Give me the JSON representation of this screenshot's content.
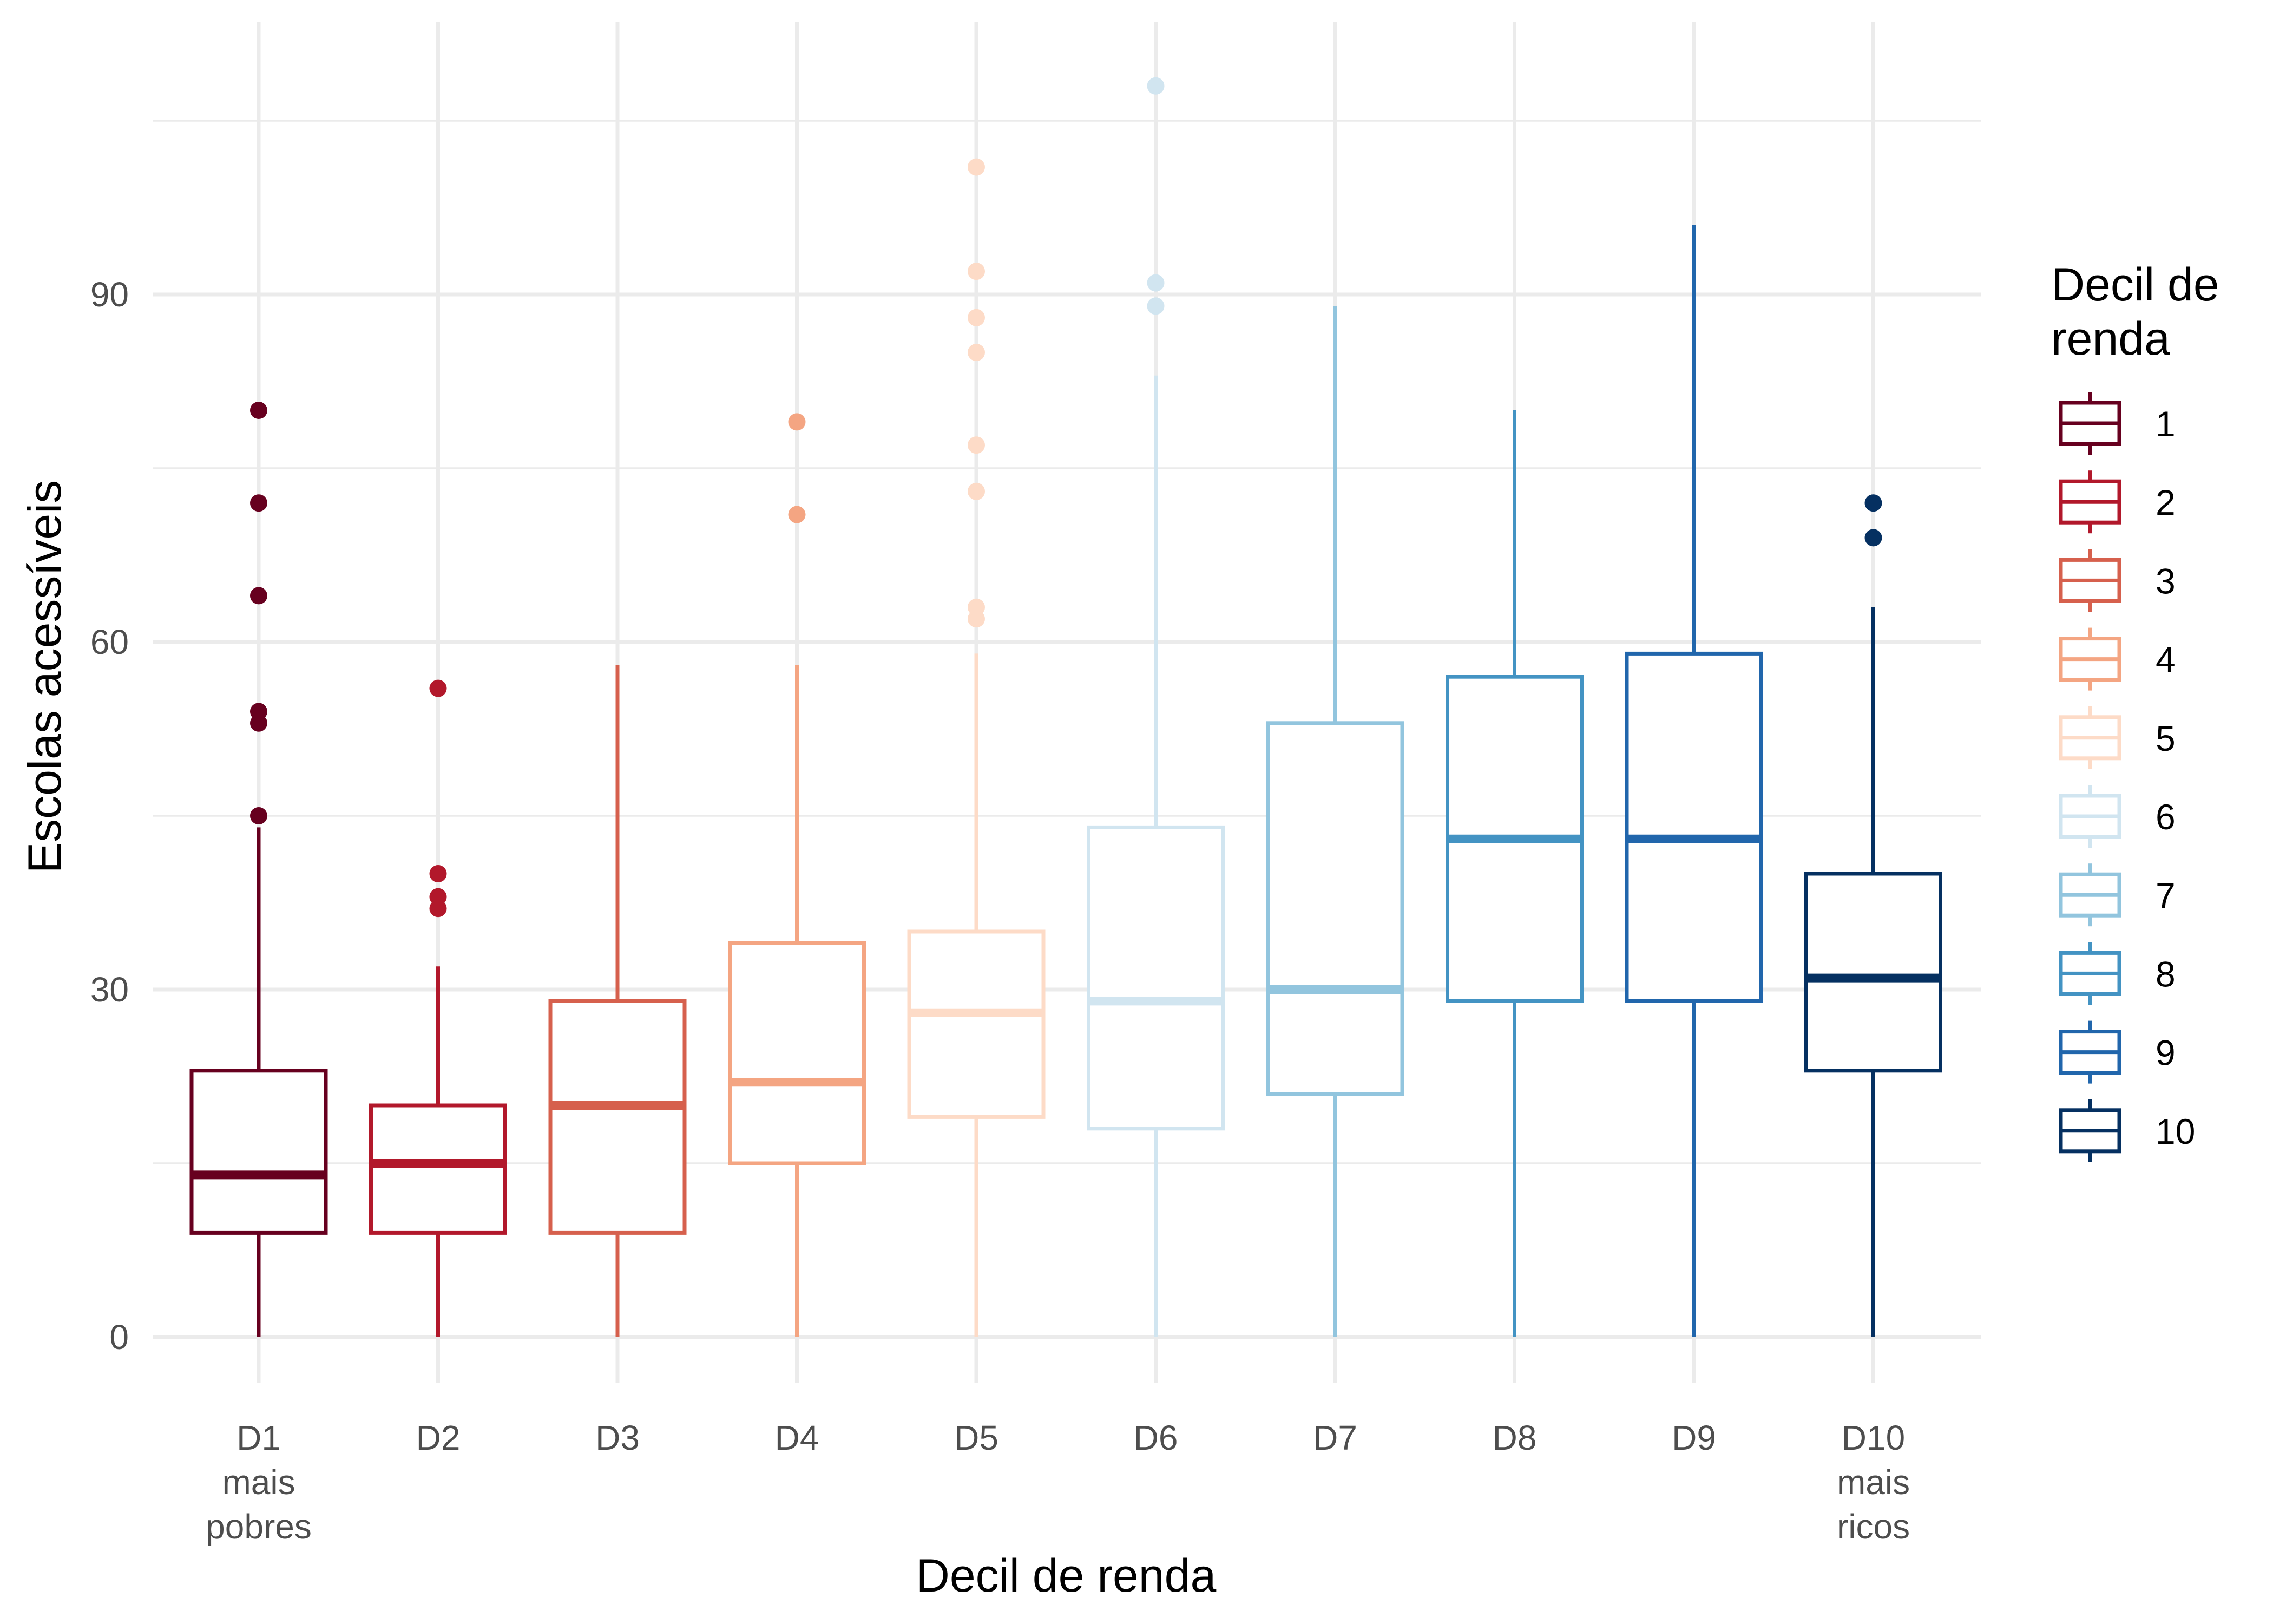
{
  "chart_data": {
    "type": "boxplot",
    "xlabel": "Decil de renda",
    "ylabel": "Escolas acessíveis",
    "ylim": [
      -5,
      110
    ],
    "yticks": [
      0,
      30,
      60,
      90
    ],
    "grid": true,
    "legend": {
      "title_lines": [
        "Decil de",
        "renda"
      ],
      "placement": "right"
    },
    "series": [
      {
        "category": [
          "D1",
          "mais",
          "pobres"
        ],
        "legend": "1",
        "color": "#67001F",
        "whisker_low": 0,
        "q1": 9,
        "median": 14,
        "q3": 23,
        "whisker_high": 44,
        "outliers": [
          45,
          53,
          54,
          64,
          72,
          80
        ]
      },
      {
        "category": [
          "D2"
        ],
        "legend": "2",
        "color": "#B2182B",
        "whisker_low": 0,
        "q1": 9,
        "median": 15,
        "q3": 20,
        "whisker_high": 32,
        "outliers": [
          37,
          38,
          40,
          56
        ]
      },
      {
        "category": [
          "D3"
        ],
        "legend": "3",
        "color": "#D6604D",
        "whisker_low": 0,
        "q1": 9,
        "median": 20,
        "q3": 29,
        "whisker_high": 58,
        "outliers": []
      },
      {
        "category": [
          "D4"
        ],
        "legend": "4",
        "color": "#F4A582",
        "whisker_low": 0,
        "q1": 15,
        "median": 22,
        "q3": 34,
        "whisker_high": 58,
        "outliers": [
          71,
          79
        ]
      },
      {
        "category": [
          "D5"
        ],
        "legend": "5",
        "color": "#FDDBC7",
        "whisker_low": 0,
        "q1": 19,
        "median": 28,
        "q3": 35,
        "whisker_high": 59,
        "outliers": [
          62,
          63,
          73,
          77,
          85,
          88,
          92,
          101
        ]
      },
      {
        "category": [
          "D6"
        ],
        "legend": "6",
        "color": "#D1E5F0",
        "whisker_low": 0,
        "q1": 18,
        "median": 29,
        "q3": 44,
        "whisker_high": 83,
        "outliers": [
          89,
          91,
          108
        ]
      },
      {
        "category": [
          "D7"
        ],
        "legend": "7",
        "color": "#92C5DE",
        "whisker_low": 0,
        "q1": 21,
        "median": 30,
        "q3": 53,
        "whisker_high": 89,
        "outliers": []
      },
      {
        "category": [
          "D8"
        ],
        "legend": "8",
        "color": "#4393C3",
        "whisker_low": 0,
        "q1": 29,
        "median": 43,
        "q3": 57,
        "whisker_high": 80,
        "outliers": []
      },
      {
        "category": [
          "D9"
        ],
        "legend": "9",
        "color": "#2166AC",
        "whisker_low": 0,
        "q1": 29,
        "median": 43,
        "q3": 59,
        "whisker_high": 96,
        "outliers": []
      },
      {
        "category": [
          "D10",
          "mais",
          "ricos"
        ],
        "legend": "10",
        "color": "#053061",
        "whisker_low": 0,
        "q1": 23,
        "median": 31,
        "q3": 40,
        "whisker_high": 63,
        "outliers": [
          69,
          72
        ]
      }
    ]
  }
}
